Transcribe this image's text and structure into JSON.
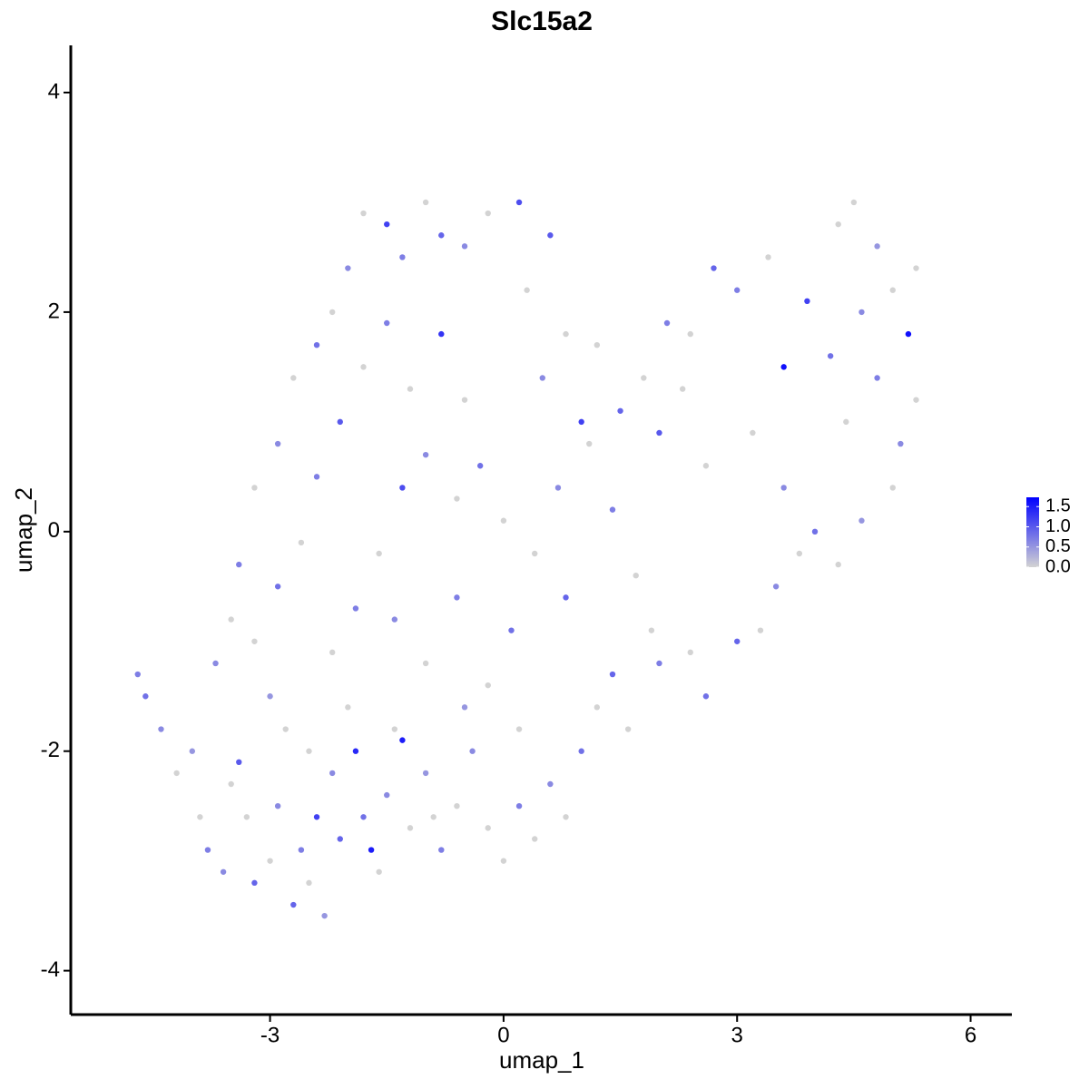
{
  "chart_data": {
    "type": "scatter",
    "title": "Slc15a2",
    "x_label": "umap_1",
    "y_label": "umap_2",
    "xlim": [
      -5.56,
      6.53
    ],
    "ylim": [
      -4.4,
      4.43
    ],
    "xticks": [
      -3,
      0,
      3,
      6
    ],
    "yticks": [
      -4,
      -2,
      0,
      2,
      4
    ],
    "color_low": "#d3d3d3",
    "color_high": "#0000ff",
    "color_lim": [
      0,
      1.73
    ],
    "color_ticks": [
      {
        "value": 0,
        "label": "0.0"
      },
      0.5,
      {
        "value": 1,
        "label": "1.0"
      },
      1.5
    ],
    "x": [
      -4.7,
      -4.6,
      -4.4,
      -4.2,
      -4.0,
      -3.9,
      -3.8,
      -3.6,
      -3.5,
      -3.4,
      -3.3,
      -3.2,
      -3.0,
      -2.9,
      -2.8,
      -2.7,
      -2.6,
      -2.5,
      -2.4,
      -2.3,
      -2.2,
      -2.1,
      -2.0,
      -1.9,
      -1.8,
      -1.7,
      -1.6,
      -1.5,
      -1.4,
      -1.3,
      -1.2,
      -1.0,
      -0.8,
      -0.6,
      -0.4,
      -0.2,
      0.0,
      0.2,
      0.4,
      0.6,
      0.8,
      1.0,
      1.2,
      1.4,
      1.6,
      2.0,
      2.4,
      2.6,
      3.0,
      3.3,
      3.5,
      3.8,
      4.0,
      4.3,
      4.6,
      5.0,
      5.1,
      5.3,
      5.2,
      5.0,
      5.3,
      4.8,
      4.5,
      4.3,
      4.6,
      4.2,
      3.9,
      3.6,
      3.4,
      3.0,
      2.7,
      2.4,
      2.1,
      1.8,
      1.5,
      1.2,
      1.0,
      0.8,
      0.5,
      0.3,
      0.6,
      0.2,
      -0.2,
      -0.5,
      -0.8,
      -1.0,
      -1.3,
      -1.5,
      -1.8,
      -2.0,
      -2.2,
      -2.4,
      -2.7,
      -2.9,
      -3.2,
      -3.4,
      -3.5,
      -3.7,
      -3.2,
      -2.9,
      -2.6,
      -2.4,
      -2.1,
      -1.8,
      -1.5,
      -1.2,
      -0.8,
      -0.5,
      -0.3,
      -0.6,
      -1.0,
      -1.3,
      -1.6,
      -1.9,
      -2.2,
      -1.4,
      -1.0,
      -0.6,
      -0.2,
      0.1,
      0.4,
      0.7,
      1.1,
      1.4,
      1.7,
      2.0,
      2.3,
      0.8,
      0.2,
      -0.5,
      2.6,
      3.2,
      3.6,
      4.4,
      4.8,
      1.9,
      -3.0,
      -2.5,
      0.0,
      -0.9
    ],
    "y": [
      -1.3,
      -1.5,
      -1.8,
      -2.2,
      -2.0,
      -2.6,
      -2.9,
      -3.1,
      -2.3,
      -2.1,
      -2.6,
      -3.2,
      -3.0,
      -2.5,
      -1.8,
      -3.4,
      -2.9,
      -3.2,
      -2.6,
      -3.5,
      -2.2,
      -2.8,
      -1.6,
      -2.0,
      -2.6,
      -2.9,
      -3.1,
      -2.4,
      -1.8,
      -1.9,
      -2.7,
      -2.2,
      -2.9,
      -2.5,
      -2.0,
      -2.7,
      -3.0,
      -2.5,
      -2.8,
      -2.3,
      -2.6,
      -2.0,
      -1.6,
      -1.3,
      -1.8,
      -1.2,
      -1.1,
      -1.5,
      -1.0,
      -0.9,
      -0.5,
      -0.2,
      0.0,
      -0.3,
      0.1,
      0.4,
      0.8,
      1.2,
      1.8,
      2.2,
      2.4,
      2.6,
      3.0,
      2.8,
      2.0,
      1.6,
      2.1,
      1.5,
      2.5,
      2.2,
      2.4,
      1.8,
      1.9,
      1.4,
      1.1,
      1.7,
      1.0,
      1.8,
      1.4,
      2.2,
      2.7,
      3.0,
      2.9,
      2.6,
      2.7,
      3.0,
      2.5,
      2.8,
      2.9,
      2.4,
      2.0,
      1.7,
      1.4,
      0.8,
      0.4,
      -0.3,
      -0.8,
      -1.2,
      -1.0,
      -0.5,
      -0.1,
      0.5,
      1.0,
      1.5,
      1.9,
      1.3,
      1.8,
      1.2,
      0.6,
      0.3,
      0.7,
      0.4,
      -0.2,
      -0.7,
      -1.1,
      -0.8,
      -1.2,
      -0.6,
      -1.4,
      -0.9,
      -0.2,
      0.4,
      0.8,
      0.2,
      -0.4,
      0.9,
      1.3,
      -0.6,
      -1.8,
      -1.6,
      0.6,
      0.9,
      0.4,
      1.0,
      1.4,
      -0.9,
      -1.5,
      -2.0,
      0.1,
      -2.6
    ],
    "expression": [
      0.7,
      0.8,
      0.6,
      0,
      0.5,
      0,
      0.7,
      0.6,
      0,
      1.0,
      0,
      0.9,
      0,
      0.6,
      0,
      0.9,
      0.7,
      0,
      1.2,
      0.5,
      0.6,
      0.9,
      0,
      1.4,
      0.8,
      1.5,
      0,
      0.6,
      0,
      1.5,
      0,
      0.5,
      0.7,
      0,
      0.6,
      0,
      0,
      0.7,
      0,
      0.6,
      0,
      0.8,
      0,
      0.9,
      0,
      0.7,
      0,
      0.8,
      0.9,
      0,
      0.6,
      0,
      0.8,
      0,
      0.5,
      0,
      0.6,
      0,
      1.6,
      0,
      0,
      0.5,
      0,
      0,
      0.6,
      0.8,
      1.2,
      1.6,
      0,
      0.7,
      0.9,
      0,
      0.7,
      0,
      0.9,
      0,
      1.2,
      0,
      0.6,
      0,
      1.0,
      1.1,
      0,
      0.6,
      0.9,
      0,
      0.7,
      1.2,
      0,
      0.6,
      0,
      0.8,
      0,
      0.6,
      0,
      0.7,
      0,
      0.6,
      0,
      0.8,
      0,
      0.7,
      1.0,
      0,
      0.7,
      0,
      1.3,
      0,
      0.8,
      0,
      0.6,
      1.1,
      0,
      0.7,
      0,
      0.6,
      0,
      0.7,
      0,
      0.8,
      0,
      0.6,
      0,
      0.7,
      0,
      1.0,
      0,
      0.9,
      0,
      0.5,
      0,
      0,
      0.6,
      0,
      0.7,
      0,
      0.5,
      0,
      0,
      0
    ]
  }
}
